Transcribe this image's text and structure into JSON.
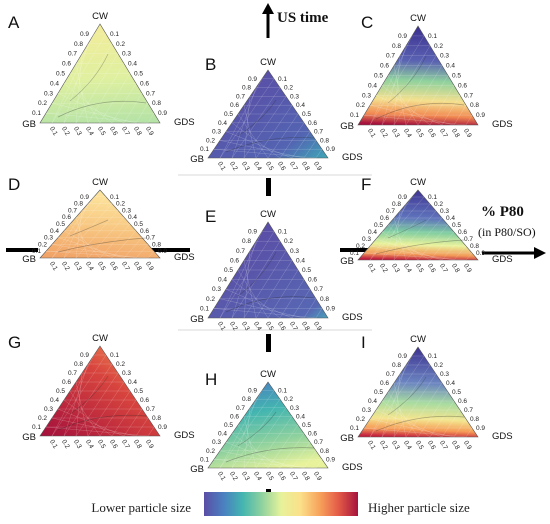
{
  "figure": {
    "panels": [
      {
        "letter": "A",
        "scheme": "A"
      },
      {
        "letter": "B",
        "scheme": "B"
      },
      {
        "letter": "C",
        "scheme": "C"
      },
      {
        "letter": "D",
        "scheme": "D"
      },
      {
        "letter": "E",
        "scheme": "E"
      },
      {
        "letter": "F",
        "scheme": "F"
      },
      {
        "letter": "G",
        "scheme": "G"
      },
      {
        "letter": "H",
        "scheme": "H"
      },
      {
        "letter": "I",
        "scheme": "I"
      }
    ],
    "vertex_labels": {
      "top": "CW",
      "left": "GB",
      "right": "GDS"
    },
    "tick_values": [
      "0.1",
      "0.2",
      "0.3",
      "0.4",
      "0.5",
      "0.6",
      "0.7",
      "0.8",
      "0.9"
    ],
    "us_time_label": "US time",
    "p80_label": "% P80",
    "p80_sub_label": "(in P80/SO)",
    "colorbar": {
      "low_label": "Lower particle size",
      "high_label": "Higher particle size",
      "colors": [
        "#5b4ea6",
        "#4a7fc0",
        "#43b5b0",
        "#8fd19e",
        "#e6f29b",
        "#fbe08a",
        "#f7a35c",
        "#e35a47",
        "#a6123d"
      ]
    }
  }
}
